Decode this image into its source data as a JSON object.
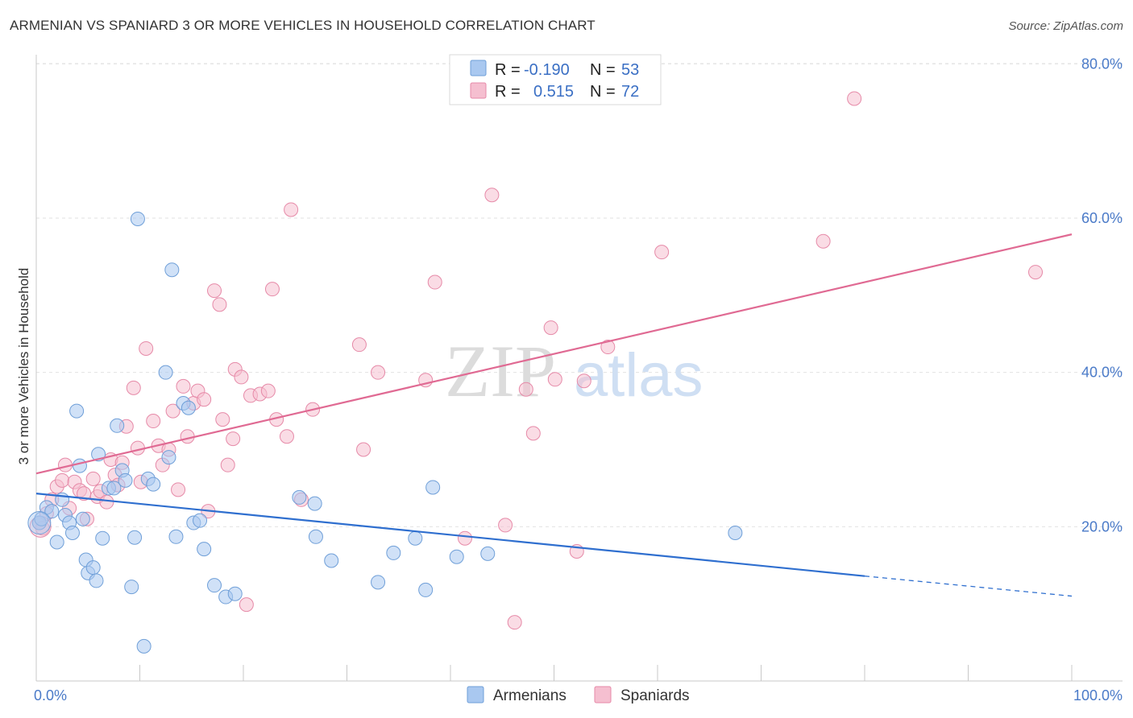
{
  "title": "ARMENIAN VS SPANIARD 3 OR MORE VEHICLES IN HOUSEHOLD CORRELATION CHART",
  "source": "Source: ZipAtlas.com",
  "watermark": {
    "zip": "ZIP",
    "atlas": "atlas"
  },
  "colors": {
    "armenian_fill": "#a9c8f0",
    "armenian_stroke": "#6f9fd8",
    "armenian_line": "#2f6fcf",
    "spaniard_fill": "#f5bfd0",
    "spaniard_stroke": "#e68aa8",
    "spaniard_line": "#e06a93",
    "tick_label": "#4a7ac8"
  },
  "legend": {
    "r_label": "R =",
    "n_label": "N =",
    "armenian_r": "-0.190",
    "armenian_n": "53",
    "spaniard_r": "0.515",
    "spaniard_n": "72"
  },
  "bottom_legend": {
    "armenians": "Armenians",
    "spaniards": "Spaniards"
  },
  "chart_data": {
    "type": "scatter",
    "title": "ARMENIAN VS SPANIARD 3 OR MORE VEHICLES IN HOUSEHOLD CORRELATION CHART",
    "xlabel": "",
    "ylabel": "3 or more Vehicles in Household",
    "xlim": [
      0,
      100
    ],
    "ylim": [
      0,
      82
    ],
    "x_tick_labels": [
      "0.0%",
      "100.0%"
    ],
    "y_ticks": [
      20,
      40,
      60,
      80
    ],
    "y_tick_labels": [
      "20.0%",
      "40.0%",
      "60.0%",
      "80.0%"
    ],
    "grid": true,
    "legend_placement": "top-center",
    "series": [
      {
        "name": "Armenians",
        "r": -0.19,
        "n": 53,
        "trend": {
          "x0": 0,
          "y0": 24.3,
          "x1": 80,
          "y1": 13.6,
          "dash_to_x": 100,
          "dash_to_y": 11.0
        },
        "points": [
          [
            0.3,
            20.5
          ],
          [
            0.5,
            21.0
          ],
          [
            1.0,
            22.5
          ],
          [
            1.5,
            22.0
          ],
          [
            2.0,
            18.0
          ],
          [
            2.5,
            23.5
          ],
          [
            2.8,
            21.5
          ],
          [
            3.2,
            20.5
          ],
          [
            3.5,
            19.2
          ],
          [
            3.9,
            35.0
          ],
          [
            4.2,
            27.9
          ],
          [
            4.5,
            21.0
          ],
          [
            4.8,
            15.7
          ],
          [
            5.0,
            14.0
          ],
          [
            5.5,
            14.7
          ],
          [
            5.8,
            13.0
          ],
          [
            6.0,
            29.4
          ],
          [
            6.4,
            18.5
          ],
          [
            7.0,
            25.0
          ],
          [
            7.5,
            25.0
          ],
          [
            7.8,
            33.1
          ],
          [
            8.3,
            27.3
          ],
          [
            8.6,
            26.0
          ],
          [
            9.2,
            12.2
          ],
          [
            9.5,
            18.6
          ],
          [
            9.8,
            59.9
          ],
          [
            10.4,
            4.5
          ],
          [
            10.8,
            26.2
          ],
          [
            11.3,
            25.5
          ],
          [
            12.5,
            40.0
          ],
          [
            12.8,
            29.0
          ],
          [
            13.1,
            53.3
          ],
          [
            13.5,
            18.7
          ],
          [
            14.2,
            36.0
          ],
          [
            14.7,
            35.4
          ],
          [
            15.2,
            20.5
          ],
          [
            15.8,
            20.8
          ],
          [
            16.2,
            17.1
          ],
          [
            17.2,
            12.4
          ],
          [
            18.3,
            10.9
          ],
          [
            19.2,
            11.3
          ],
          [
            25.4,
            23.8
          ],
          [
            26.9,
            23.0
          ],
          [
            27.0,
            18.7
          ],
          [
            28.5,
            15.6
          ],
          [
            33.0,
            12.8
          ],
          [
            34.5,
            16.6
          ],
          [
            36.6,
            18.5
          ],
          [
            37.6,
            11.8
          ],
          [
            38.3,
            25.1
          ],
          [
            40.6,
            16.1
          ],
          [
            43.6,
            16.5
          ],
          [
            67.5,
            19.2
          ]
        ]
      },
      {
        "name": "Spaniards",
        "r": 0.515,
        "n": 72,
        "trend": {
          "x0": 0,
          "y0": 26.9,
          "x1": 100,
          "y1": 57.9
        },
        "points": [
          [
            0.3,
            20.5
          ],
          [
            0.6,
            19.8
          ],
          [
            1.0,
            21.7
          ],
          [
            1.5,
            23.5
          ],
          [
            2.0,
            25.2
          ],
          [
            2.5,
            26.0
          ],
          [
            2.8,
            28.0
          ],
          [
            3.2,
            22.4
          ],
          [
            3.7,
            25.8
          ],
          [
            4.2,
            24.7
          ],
          [
            4.6,
            24.3
          ],
          [
            4.9,
            21.0
          ],
          [
            5.5,
            26.2
          ],
          [
            5.9,
            23.9
          ],
          [
            6.2,
            24.6
          ],
          [
            6.8,
            23.2
          ],
          [
            7.2,
            28.7
          ],
          [
            7.6,
            26.7
          ],
          [
            7.9,
            25.4
          ],
          [
            8.3,
            28.3
          ],
          [
            8.7,
            33.0
          ],
          [
            9.4,
            38.0
          ],
          [
            9.8,
            30.2
          ],
          [
            10.1,
            25.8
          ],
          [
            10.6,
            43.1
          ],
          [
            11.3,
            33.7
          ],
          [
            11.8,
            30.5
          ],
          [
            12.2,
            28.0
          ],
          [
            12.8,
            30.0
          ],
          [
            13.2,
            35.0
          ],
          [
            13.7,
            24.8
          ],
          [
            14.2,
            38.2
          ],
          [
            14.6,
            31.7
          ],
          [
            15.2,
            36.0
          ],
          [
            15.6,
            37.6
          ],
          [
            16.2,
            36.5
          ],
          [
            16.6,
            22.0
          ],
          [
            17.2,
            50.6
          ],
          [
            17.7,
            48.8
          ],
          [
            18.0,
            33.9
          ],
          [
            18.5,
            28.0
          ],
          [
            19.0,
            31.4
          ],
          [
            19.2,
            40.4
          ],
          [
            19.8,
            39.4
          ],
          [
            20.3,
            9.9
          ],
          [
            20.7,
            37.0
          ],
          [
            21.6,
            37.2
          ],
          [
            22.4,
            37.6
          ],
          [
            22.8,
            50.8
          ],
          [
            23.2,
            33.9
          ],
          [
            24.2,
            31.7
          ],
          [
            24.6,
            61.1
          ],
          [
            25.6,
            23.5
          ],
          [
            26.7,
            35.2
          ],
          [
            31.2,
            43.6
          ],
          [
            31.6,
            30.0
          ],
          [
            33.0,
            40.0
          ],
          [
            37.6,
            39.0
          ],
          [
            38.5,
            51.7
          ],
          [
            41.4,
            18.5
          ],
          [
            44.0,
            63.0
          ],
          [
            45.3,
            20.2
          ],
          [
            46.2,
            7.6
          ],
          [
            47.3,
            37.8
          ],
          [
            48.0,
            32.1
          ],
          [
            49.7,
            45.8
          ],
          [
            50.1,
            39.1
          ],
          [
            52.2,
            16.8
          ],
          [
            52.9,
            38.9
          ],
          [
            55.2,
            43.3
          ],
          [
            60.4,
            55.6
          ],
          [
            79.0,
            75.5
          ]
        ]
      }
    ],
    "extra_points_spaniards": [
      [
        76.0,
        57.0
      ],
      [
        96.5,
        53.0
      ]
    ]
  }
}
